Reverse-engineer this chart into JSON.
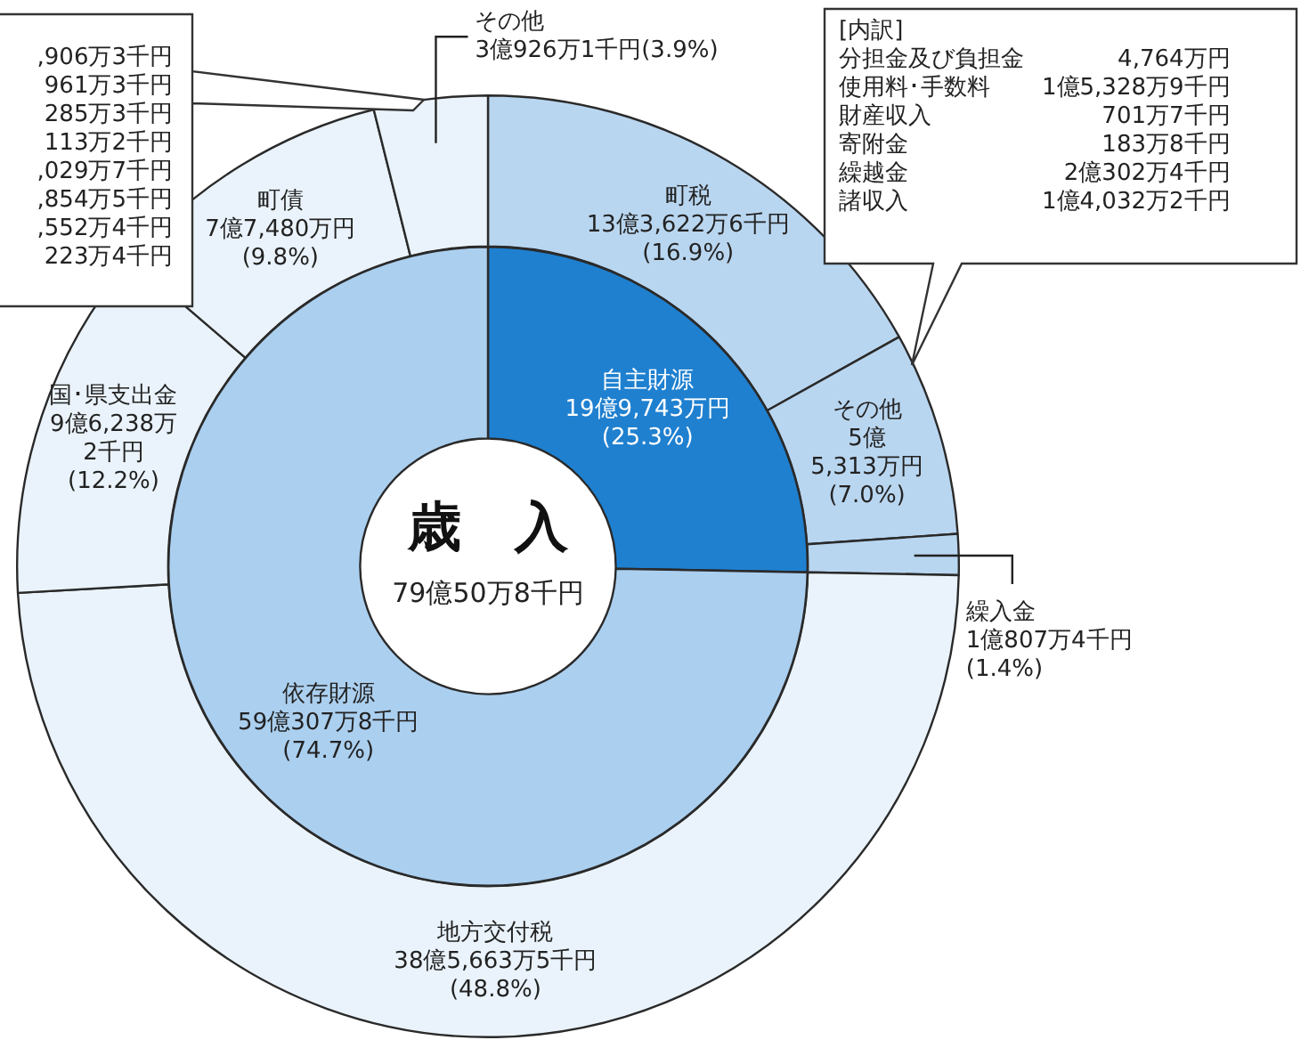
{
  "chart_data": [
    {
      "type": "donut",
      "data_labels": true,
      "categories": [
        "町税",
        "その他",
        "繰入金",
        "地方交付税",
        "国･県支出金",
        "町債",
        "その他"
      ],
      "values": [
        16.9,
        7.0,
        1.4,
        48.8,
        12.2,
        9.8,
        3.9
      ],
      "colors": [
        "#b9d6f0",
        "#b9d6f0",
        "#b9d6f0",
        "#eaf3fb",
        "#eaf3fb",
        "#eaf3fb",
        "#eaf3fb"
      ],
      "value_labels": [
        "13億3,622万6千円\n(16.9%)",
        "5億\n5,313万円\n(7.0%)",
        "1億807万4千円\n(1.4%)",
        "38億5,663万5千円\n(48.8%)",
        "9億6,238万\n2千円\n(12.2%)",
        "7億7,480万円\n(9.8%)",
        "3億926万1千円(3.9%)"
      ],
      "annotations": [
        "[内訳]",
        "分担金及び負担金",
        "4,764万円",
        "使用料･手数料",
        "1億5,328万9千円",
        "財産収入",
        "701万7千円",
        "寄附金",
        "183万8千円",
        "繰越金",
        "2億302万4千円",
        "諸収入",
        "1億4,032万2千円",
        ",906万3千円",
        "961万3千円",
        "285万3千円",
        "113万2千円",
        ",029万7千円",
        ",854万5千円",
        ",552万4千円",
        "223万4千円"
      ]
    },
    {
      "type": "donut",
      "title": "歳　入",
      "subtitle": "79億50万8千円",
      "data_labels": true,
      "categories": [
        "自主財源",
        "依存財源"
      ],
      "values": [
        25.3,
        74.7
      ],
      "colors": [
        "#1f80d0",
        "#abcfef"
      ],
      "value_labels": [
        "19億9,743万円\n(25.3%)",
        "59億307万8千円\n(74.7%)"
      ]
    }
  ]
}
